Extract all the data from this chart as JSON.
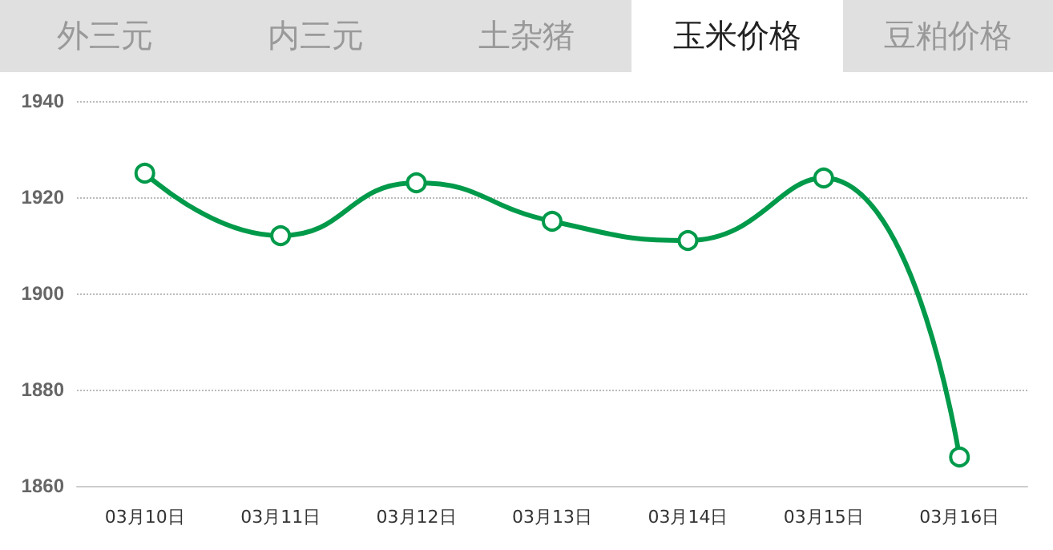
{
  "chart_data": {
    "type": "line",
    "title": "玉米价格",
    "annotations": [
      "外三元",
      "内三元",
      "土杂猪",
      "豆粕价格"
    ],
    "categories": [
      "03月10日",
      "03月11日",
      "03月12日",
      "03月13日",
      "03月14日",
      "03月15日",
      "03月16日"
    ],
    "series": [
      {
        "color": "#009a4a",
        "values": [
          1925,
          1912,
          1923,
          1915,
          1911,
          1924,
          1866
        ]
      }
    ],
    "ylim": [
      1860,
      1940
    ],
    "yticks": [
      1860,
      1880,
      1900,
      1920,
      1940
    ],
    "grid": "y",
    "marker": "circle",
    "line_style": "solid"
  }
}
